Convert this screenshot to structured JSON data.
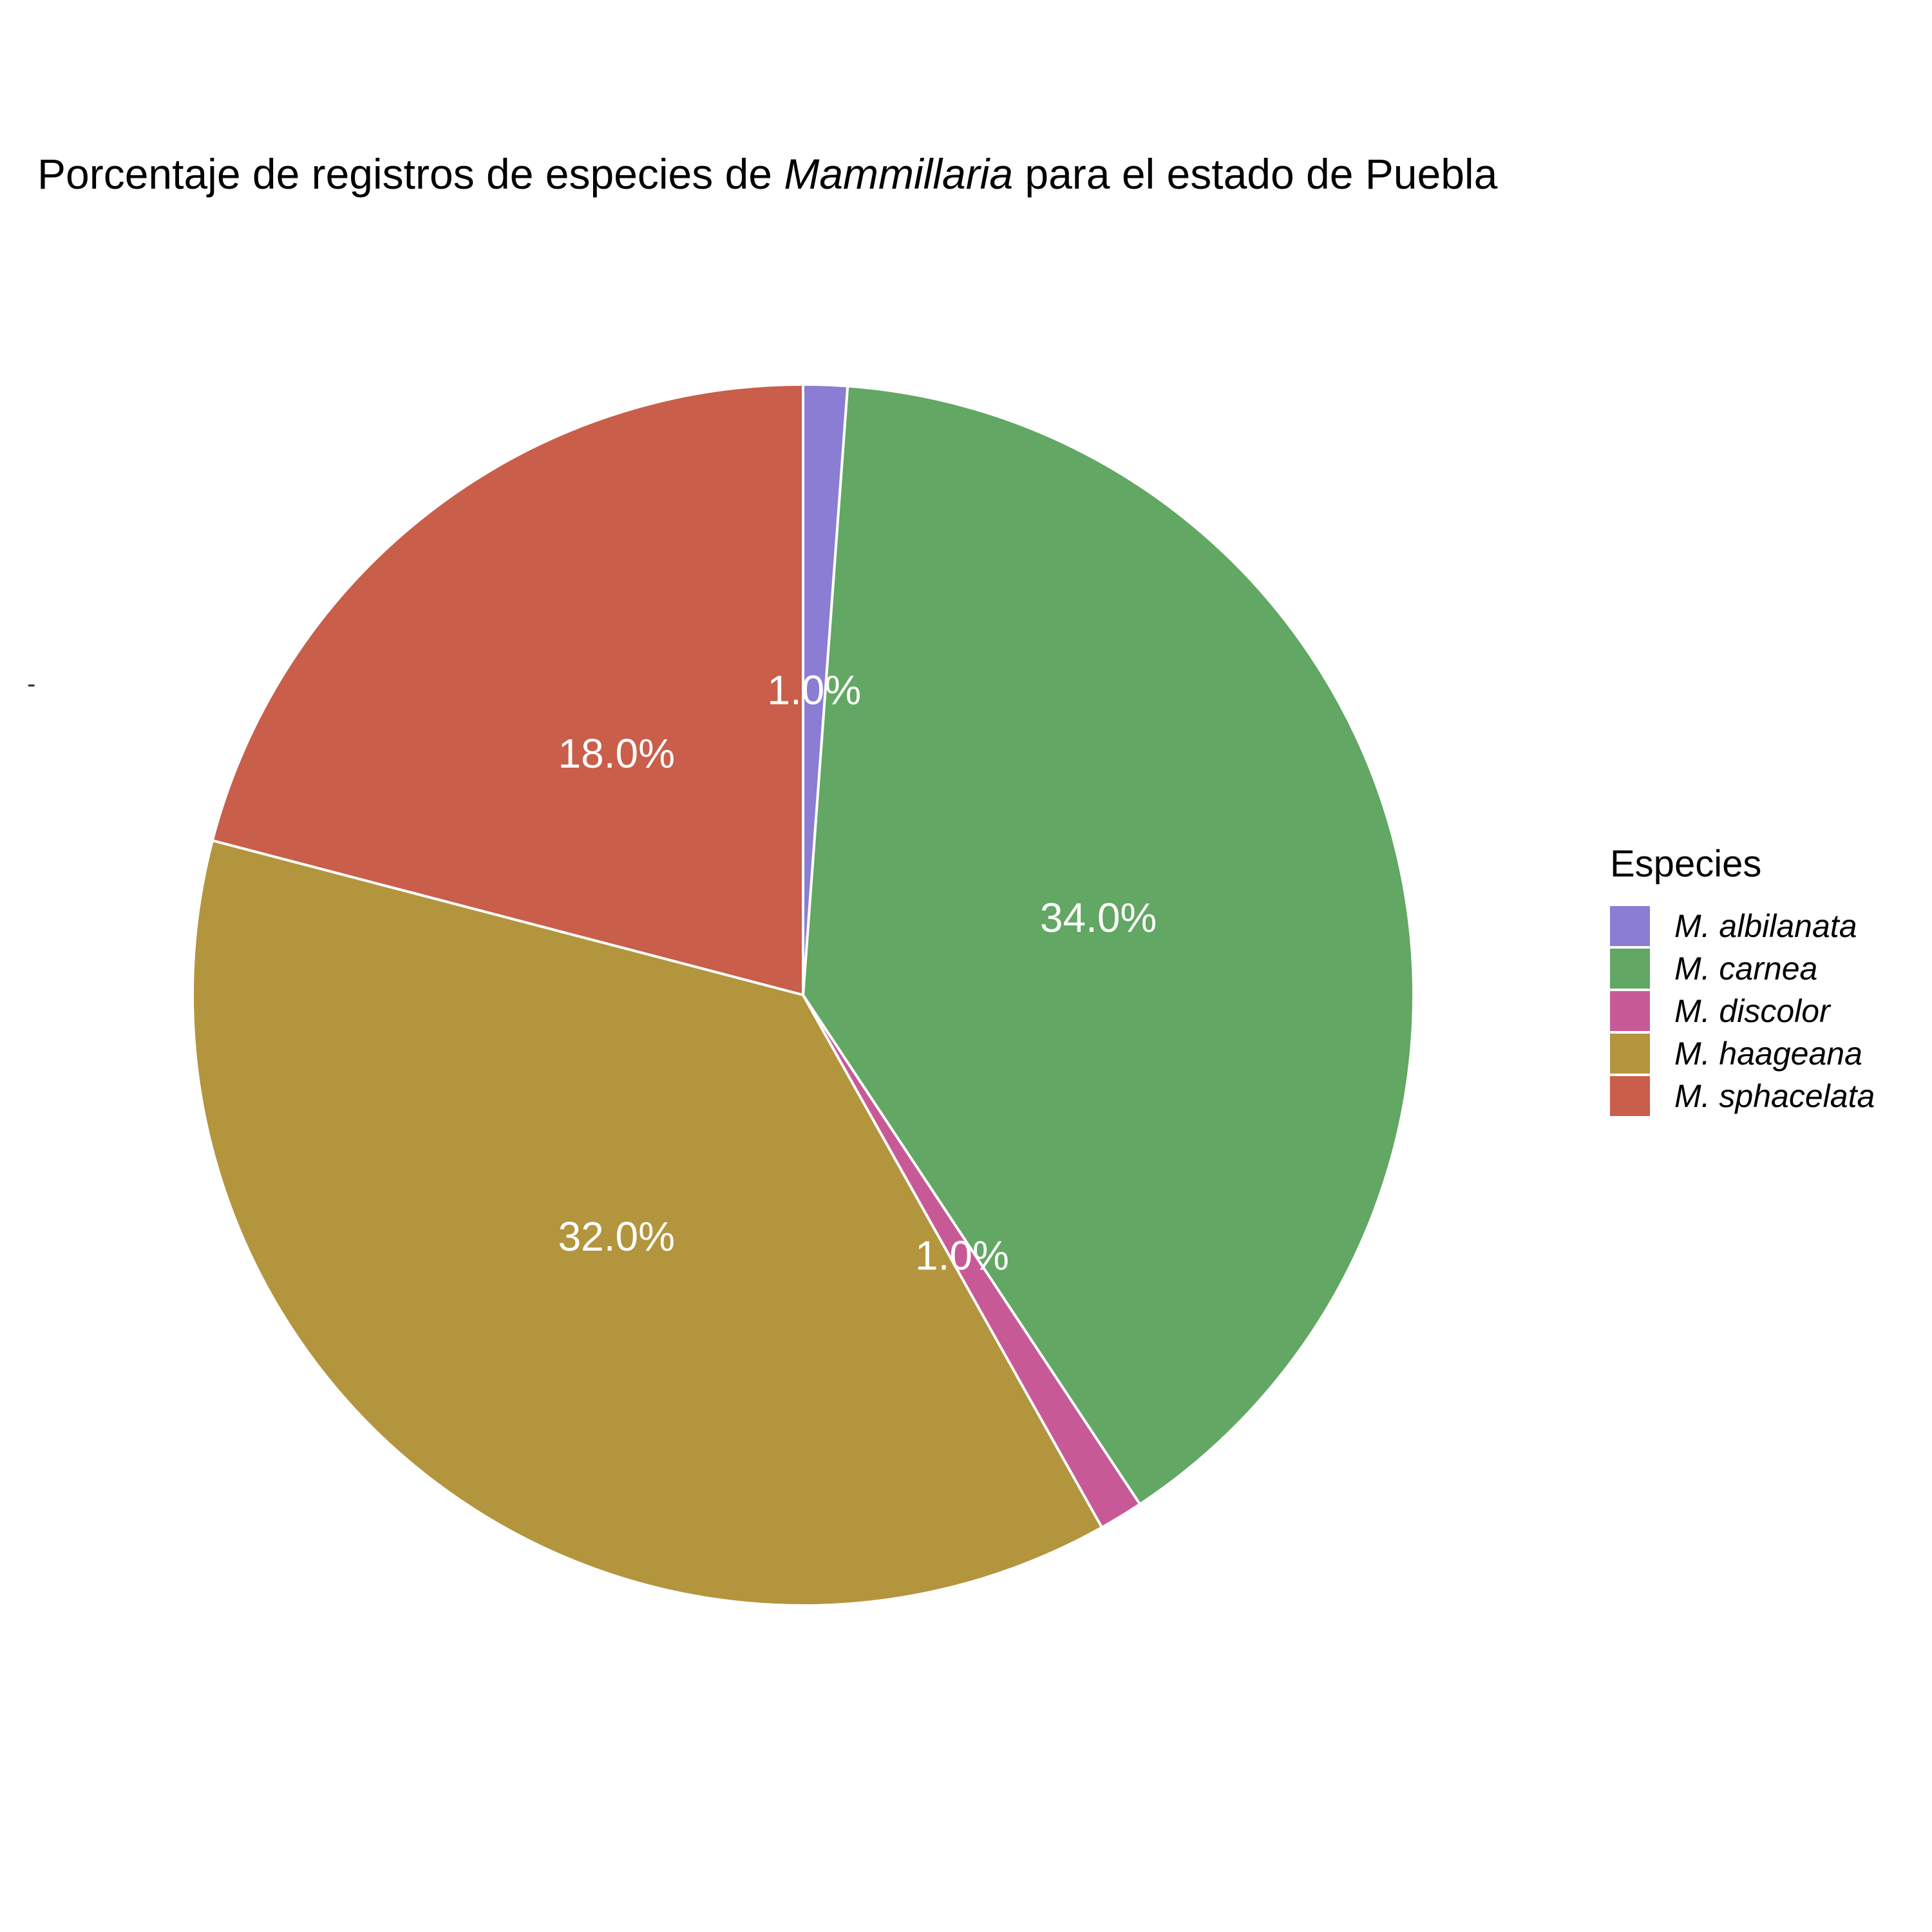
{
  "title": {
    "prefix": "Porcentaje de registros de especies de ",
    "italic": "Mammillaria",
    "suffix": " para el estado de Puebla"
  },
  "stray_tick": "-",
  "chart_data": {
    "type": "pie",
    "title": "Porcentaje de registros de especies de Mammillaria para el estado de Puebla",
    "start_angle_deg": 0,
    "direction": "counterclockwise",
    "legend_title": "Especies",
    "legend_position": "right",
    "slices": [
      {
        "label": "M. sphacelata",
        "value": 18.0,
        "text": "18.0%",
        "color": "#C95E4A"
      },
      {
        "label": "M. haageana",
        "value": 32.0,
        "text": "32.0%",
        "color": "#B3953E"
      },
      {
        "label": "M. discolor",
        "value": 1.0,
        "text": "1.0%",
        "color": "#C75A96"
      },
      {
        "label": "M. carnea",
        "value": 34.0,
        "text": "34.0%",
        "color": "#62A763"
      },
      {
        "label": "M. albilanata",
        "value": 1.0,
        "text": "1.0%",
        "color": "#8A7DD3"
      }
    ],
    "legend_order": [
      "M. albilanata",
      "M. carnea",
      "M. discolor",
      "M. haageana",
      "M. sphacelata"
    ]
  }
}
